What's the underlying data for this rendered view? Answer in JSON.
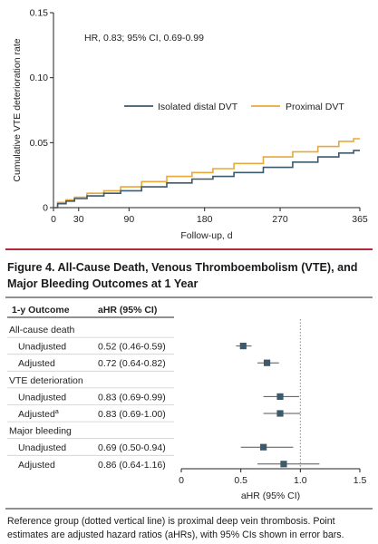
{
  "chart_data": [
    {
      "type": "line",
      "title": "",
      "annotation": "HR, 0.83; 95% CI, 0.69-0.99",
      "xlabel": "Follow-up, d",
      "ylabel": "Cumulative VTE deterioration rate",
      "xlim": [
        0,
        365
      ],
      "ylim": [
        0,
        0.15
      ],
      "x_ticks": [
        "0",
        "30",
        "90",
        "180",
        "270",
        "365"
      ],
      "x_tick_values": [
        0,
        30,
        90,
        180,
        270,
        365
      ],
      "y_ticks": [
        "0",
        "0.05",
        "0.10",
        "0.15"
      ],
      "y_tick_values": [
        0,
        0.05,
        0.1,
        0.15
      ],
      "legend_placement": "top-right",
      "series": [
        {
          "name": "Isolated distal DVT",
          "color": "#3d5a6c",
          "x": [
            0,
            10,
            20,
            30,
            50,
            70,
            90,
            120,
            150,
            180,
            200,
            230,
            270,
            300,
            330,
            350,
            365
          ],
          "y": [
            0,
            0.003,
            0.005,
            0.007,
            0.009,
            0.011,
            0.013,
            0.016,
            0.019,
            0.022,
            0.024,
            0.027,
            0.031,
            0.035,
            0.039,
            0.042,
            0.044
          ]
        },
        {
          "name": "Proximal DVT",
          "color": "#e8a83a",
          "x": [
            0,
            10,
            20,
            30,
            50,
            70,
            90,
            120,
            150,
            180,
            200,
            230,
            270,
            300,
            330,
            350,
            365
          ],
          "y": [
            0,
            0.004,
            0.006,
            0.008,
            0.011,
            0.013,
            0.016,
            0.02,
            0.024,
            0.027,
            0.03,
            0.034,
            0.039,
            0.043,
            0.047,
            0.051,
            0.053
          ]
        }
      ]
    },
    {
      "type": "forest",
      "col_headers": [
        "1-y Outcome",
        "aHR (95% CI)"
      ],
      "xlabel": "aHR (95% CI)",
      "xlim": [
        0,
        1.5
      ],
      "x_ticks": [
        "0",
        "0.5",
        "1.0",
        "1.5"
      ],
      "x_tick_values": [
        0,
        0.5,
        1.0,
        1.5
      ],
      "reference_line": 1.0,
      "groups": [
        {
          "label": "All-cause death",
          "rows": [
            {
              "label": "Unadjusted",
              "superscript": "",
              "ci_text": "0.52 (0.46-0.59)",
              "estimate": 0.52,
              "lower": 0.46,
              "upper": 0.59
            },
            {
              "label": "Adjusted",
              "superscript": "",
              "ci_text": "0.72 (0.64-0.82)",
              "estimate": 0.72,
              "lower": 0.64,
              "upper": 0.82
            }
          ]
        },
        {
          "label": "VTE deterioration",
          "rows": [
            {
              "label": "Unadjusted",
              "superscript": "",
              "ci_text": "0.83 (0.69-0.99)",
              "estimate": 0.83,
              "lower": 0.69,
              "upper": 0.99
            },
            {
              "label": "Adjusted",
              "superscript": "a",
              "ci_text": "0.83 (0.69-1.00)",
              "estimate": 0.83,
              "lower": 0.69,
              "upper": 1.0
            }
          ]
        },
        {
          "label": "Major bleeding",
          "rows": [
            {
              "label": "Unadjusted",
              "superscript": "",
              "ci_text": "0.69 (0.50-0.94)",
              "estimate": 0.69,
              "lower": 0.5,
              "upper": 0.94
            },
            {
              "label": "Adjusted",
              "superscript": "",
              "ci_text": "0.86 (0.64-1.16)",
              "estimate": 0.86,
              "lower": 0.64,
              "upper": 1.16
            }
          ]
        }
      ],
      "marker_color": "#3d5a6c"
    }
  ],
  "figure": {
    "title": "Figure 4. All-Cause Death, Venous Thromboembolism (VTE), and Major Bleeding Outcomes at 1 Year",
    "caption": "Reference group (dotted vertical line) is proximal deep vein thrombosis. Point estimates are adjusted hazard ratios (aHRs), with 95% CIs shown in error bars.",
    "accent_color": "#b22a3a"
  }
}
